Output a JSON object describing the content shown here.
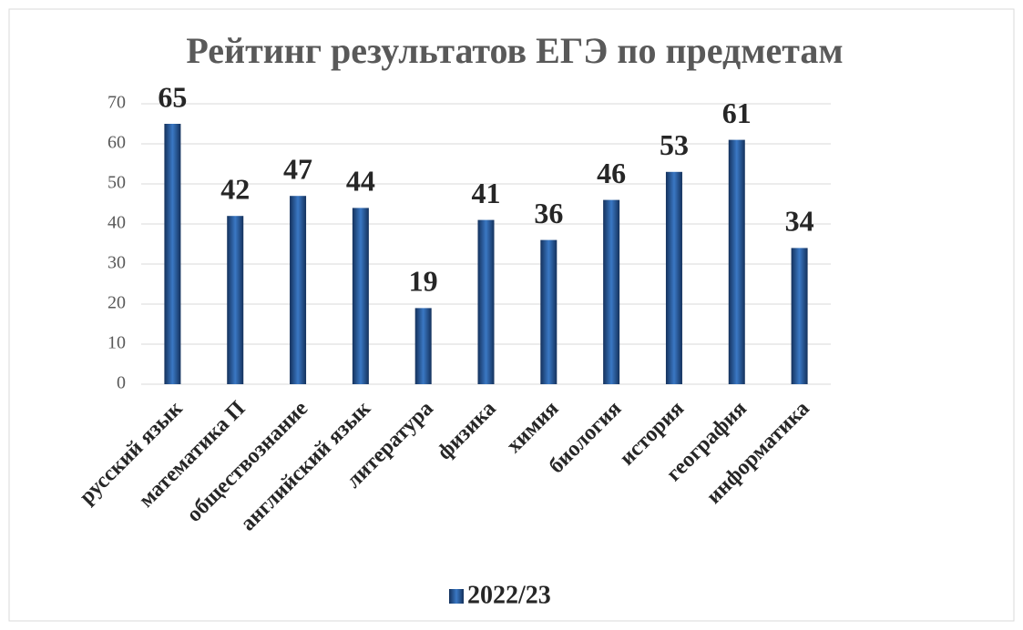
{
  "chart_data": {
    "type": "bar",
    "title": "Рейтинг результатов ЕГЭ по предметам",
    "categories": [
      "русский язык",
      "математика П",
      "обществознание",
      "английский язык",
      "литература",
      "физика",
      "химия",
      "биология",
      "история",
      "география",
      "информатика"
    ],
    "series": [
      {
        "name": "2022/23",
        "color": "#3a78c4",
        "values": [
          65,
          42,
          47,
          44,
          19,
          41,
          36,
          46,
          53,
          61,
          34
        ]
      }
    ],
    "ylim": [
      0,
      70
    ],
    "yticks": [
      0,
      10,
      20,
      30,
      40,
      50,
      60,
      70
    ],
    "grid": true,
    "legend": "bottom"
  }
}
